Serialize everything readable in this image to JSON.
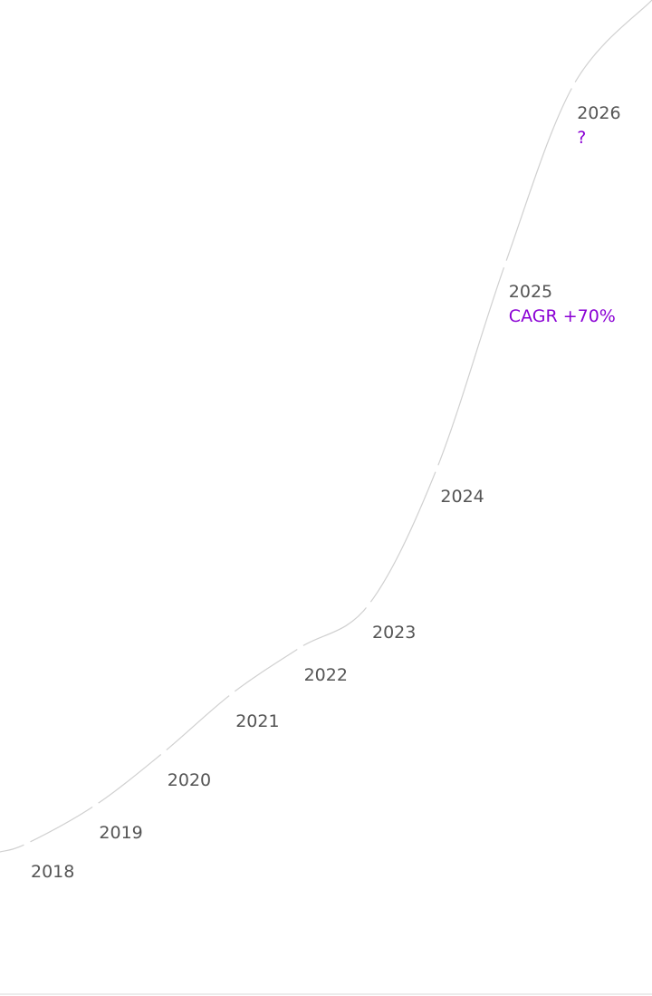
{
  "chart_data": {
    "type": "line",
    "categories": [
      "2018",
      "2019",
      "2020",
      "2021",
      "2022",
      "2023",
      "2024",
      "2025",
      "2026"
    ],
    "values_relative": [
      1,
      5.5,
      11.7,
      18.6,
      24,
      29,
      45,
      69,
      90
    ],
    "annotations": {
      "2025": "CAGR +70%",
      "2026": "?"
    },
    "title": "",
    "xlabel": "",
    "ylabel": "",
    "grid": false,
    "colors": {
      "line": "#d0d0d0",
      "label": "#555555",
      "annotation": "#8a00d4",
      "baseline": "#ececec"
    }
  }
}
